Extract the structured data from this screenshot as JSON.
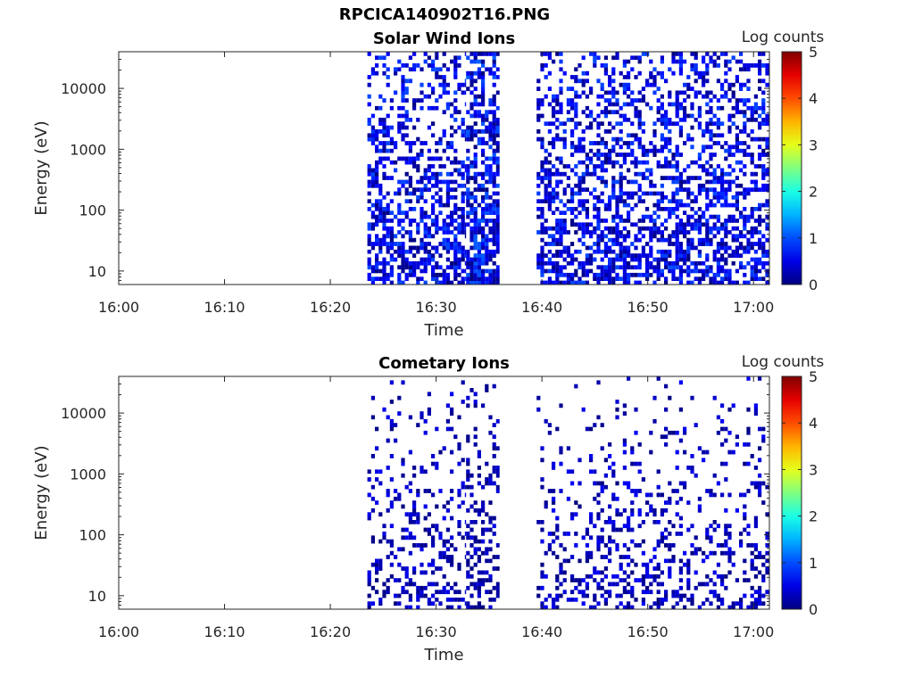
{
  "figure_title": "RPCICA140902T16.PNG",
  "chart_data": [
    {
      "type": "heatmap",
      "title": "Solar Wind Ions",
      "xlabel": "Time",
      "ylabel": "Energy (eV)",
      "x_ticks": [
        "16:00",
        "16:10",
        "16:20",
        "16:30",
        "16:40",
        "16:50",
        "17:00"
      ],
      "x_range": [
        "16:00",
        "17:01:30"
      ],
      "y_scale": "log",
      "y_ticks": [
        "10",
        "100",
        "1000",
        "10000"
      ],
      "y_range": [
        6,
        40000
      ],
      "colorbar": {
        "label": "Log counts",
        "ticks": [
          "0",
          "1",
          "2",
          "3",
          "4",
          "5"
        ],
        "range": [
          0,
          5
        ],
        "colormap": "jet"
      },
      "data_intervals": [
        {
          "start": "16:23:30",
          "end": "16:32:50",
          "density": 0.6,
          "level_max": 0.9,
          "low_energy_bias": 1.2
        },
        {
          "start": "16:32:50",
          "end": "16:36:00",
          "density": 0.85,
          "level_max": 1.0,
          "low_energy_bias": 1.0
        },
        {
          "start": "16:39:30",
          "end": "17:01:30",
          "density": 0.6,
          "level_max": 0.9,
          "low_energy_bias": 1.0
        }
      ]
    },
    {
      "type": "heatmap",
      "title": "Cometary Ions",
      "xlabel": "Time",
      "ylabel": "Energy (eV)",
      "x_ticks": [
        "16:00",
        "16:10",
        "16:20",
        "16:30",
        "16:40",
        "16:50",
        "17:00"
      ],
      "x_range": [
        "16:00",
        "17:01:30"
      ],
      "y_scale": "log",
      "y_ticks": [
        "10",
        "100",
        "1000",
        "10000"
      ],
      "y_range": [
        6,
        40000
      ],
      "colorbar": {
        "label": "Log counts",
        "ticks": [
          "0",
          "1",
          "2",
          "3",
          "4",
          "5"
        ],
        "range": [
          0,
          5
        ],
        "colormap": "jet"
      },
      "data_intervals": [
        {
          "start": "16:23:30",
          "end": "16:32:50",
          "density": 0.35,
          "level_max": 0.5,
          "low_energy_bias": 2.5
        },
        {
          "start": "16:32:50",
          "end": "16:36:00",
          "density": 0.5,
          "level_max": 0.45,
          "low_energy_bias": 2.0
        },
        {
          "start": "16:39:30",
          "end": "17:01:30",
          "density": 0.35,
          "level_max": 0.55,
          "low_energy_bias": 2.5
        }
      ]
    }
  ]
}
